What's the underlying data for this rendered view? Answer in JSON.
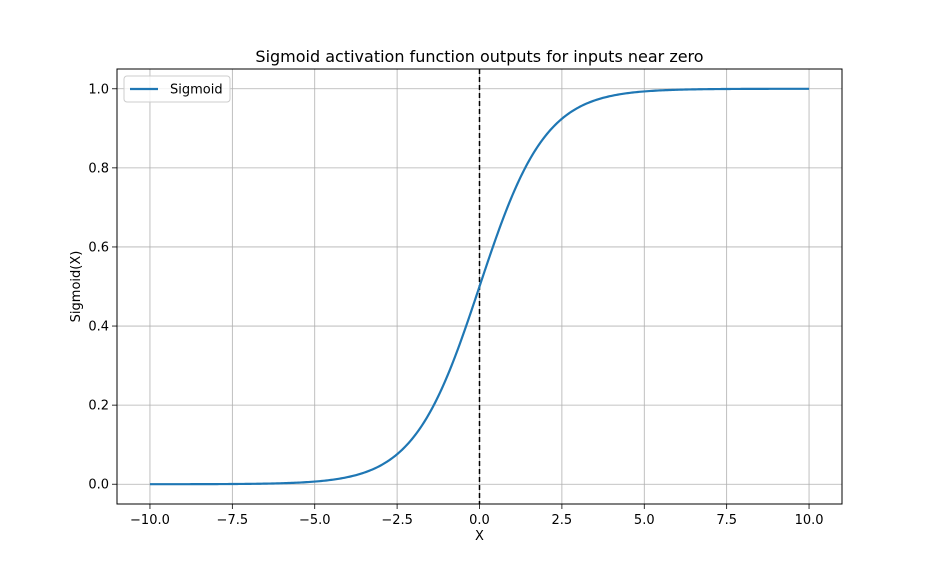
{
  "chart_data": {
    "type": "line",
    "title": "Sigmoid activation function outputs for inputs near zero",
    "xlabel": "X",
    "ylabel": "Sigmoid(X)",
    "xlim": [
      -11,
      11
    ],
    "ylim": [
      -0.05,
      1.05
    ],
    "x_ticks": [
      -10.0,
      -7.5,
      -5.0,
      -2.5,
      0.0,
      2.5,
      5.0,
      7.5,
      10.0
    ],
    "x_tick_labels": [
      "−10.0",
      "−7.5",
      "−5.0",
      "−2.5",
      "0.0",
      "2.5",
      "5.0",
      "7.5",
      "10.0"
    ],
    "y_ticks": [
      0.0,
      0.2,
      0.4,
      0.6,
      0.8,
      1.0
    ],
    "y_tick_labels": [
      "0.0",
      "0.2",
      "0.4",
      "0.6",
      "0.8",
      "1.0"
    ],
    "grid": true,
    "legend_position": "upper-left",
    "series": [
      {
        "name": "Sigmoid",
        "color": "#1f77b4",
        "function": "sigmoid",
        "x": [
          -10,
          -9,
          -8,
          -7,
          -6,
          -5,
          -4,
          -3,
          -2.5,
          -2,
          -1.5,
          -1,
          -0.5,
          0,
          0.5,
          1,
          1.5,
          2,
          2.5,
          3,
          4,
          5,
          6,
          7,
          8,
          9,
          10
        ],
        "y": [
          4.54e-05,
          0.0001234,
          0.0003354,
          0.0009111,
          0.0024726,
          0.0066929,
          0.0179862,
          0.0474259,
          0.0758582,
          0.1192029,
          0.1824255,
          0.2689414,
          0.3775407,
          0.5,
          0.6224593,
          0.7310586,
          0.8175745,
          0.8807971,
          0.9241418,
          0.9525741,
          0.9820138,
          0.9933071,
          0.9975274,
          0.9990889,
          0.9996646,
          0.9998766,
          0.9999546
        ]
      }
    ],
    "annotations": [
      {
        "type": "vline",
        "x": 0,
        "style": "dashed",
        "color": "#000000"
      }
    ]
  }
}
